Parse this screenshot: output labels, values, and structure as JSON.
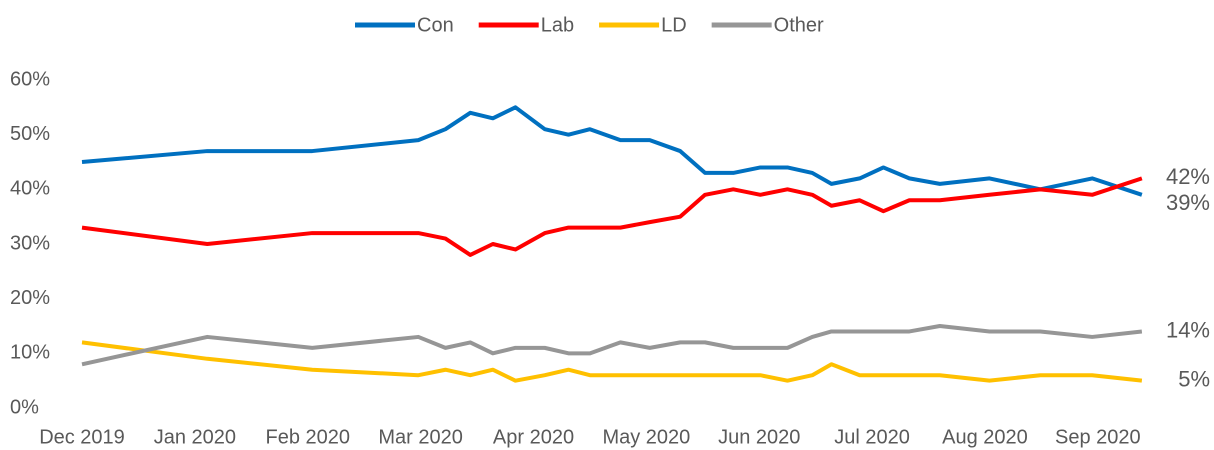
{
  "chart_data": {
    "type": "line",
    "x": [
      0,
      1.11,
      2.04,
      2.98,
      3.22,
      3.44,
      3.64,
      3.84,
      4.1,
      4.31,
      4.5,
      4.77,
      5.03,
      5.3,
      5.52,
      5.77,
      6.01,
      6.25,
      6.47,
      6.64,
      6.89,
      7.1,
      7.33,
      7.6,
      8.04,
      8.49,
      8.95,
      9.39
    ],
    "series": [
      {
        "name": "Con",
        "color": "#0070c0",
        "values": [
          45,
          47,
          47,
          49,
          51,
          54,
          53,
          55,
          51,
          50,
          51,
          49,
          49,
          47,
          43,
          43,
          44,
          44,
          43,
          41,
          42,
          44,
          42,
          41,
          42,
          40,
          42,
          39
        ],
        "value_labels": [
          null,
          null,
          null,
          null,
          null,
          null,
          null,
          null,
          null,
          null,
          null,
          null,
          null,
          null,
          null,
          null,
          null,
          null,
          null,
          null,
          null,
          null,
          null,
          null,
          null,
          null,
          null,
          "39%"
        ]
      },
      {
        "name": "Lab",
        "color": "#ff0000",
        "values": [
          33,
          30,
          32,
          32,
          31,
          28,
          30,
          29,
          32,
          33,
          33,
          33,
          34,
          35,
          39,
          40,
          39,
          40,
          39,
          37,
          38,
          36,
          38,
          38,
          39,
          40,
          39,
          42
        ],
        "value_labels": [
          null,
          null,
          null,
          null,
          null,
          null,
          null,
          null,
          null,
          null,
          null,
          null,
          null,
          null,
          null,
          null,
          null,
          null,
          null,
          null,
          null,
          null,
          null,
          null,
          null,
          null,
          null,
          "42%"
        ]
      },
      {
        "name": "LD",
        "color": "#ffc000",
        "values": [
          12,
          9,
          7,
          6,
          7,
          6,
          7,
          5,
          6,
          7,
          6,
          6,
          6,
          6,
          6,
          6,
          6,
          5,
          6,
          8,
          6,
          6,
          6,
          6,
          5,
          6,
          6,
          5
        ],
        "value_labels": [
          null,
          null,
          null,
          null,
          null,
          null,
          null,
          null,
          null,
          null,
          null,
          null,
          null,
          null,
          null,
          null,
          null,
          null,
          null,
          null,
          null,
          null,
          null,
          null,
          null,
          null,
          null,
          "5%"
        ]
      },
      {
        "name": "Other",
        "color": "#969696",
        "values": [
          8,
          13,
          11,
          13,
          11,
          12,
          10,
          11,
          11,
          10,
          10,
          12,
          11,
          12,
          12,
          11,
          11,
          11,
          13,
          14,
          14,
          14,
          14,
          15,
          14,
          14,
          13,
          14
        ],
        "value_labels": [
          null,
          null,
          null,
          null,
          null,
          null,
          null,
          null,
          null,
          null,
          null,
          null,
          null,
          null,
          null,
          null,
          null,
          null,
          null,
          null,
          null,
          null,
          null,
          null,
          null,
          null,
          null,
          "14%"
        ]
      }
    ],
    "xlim": [
      0,
      9.4
    ],
    "xticks": [
      {
        "value": 0,
        "label": "Dec 2019"
      },
      {
        "value": 1,
        "label": "Jan 2020"
      },
      {
        "value": 2,
        "label": "Feb 2020"
      },
      {
        "value": 3,
        "label": "Mar 2020"
      },
      {
        "value": 4,
        "label": "Apr 2020"
      },
      {
        "value": 5,
        "label": "May 2020"
      },
      {
        "value": 6,
        "label": "Jun 2020"
      },
      {
        "value": 7,
        "label": "Jul 2020"
      },
      {
        "value": 8,
        "label": "Aug 2020"
      },
      {
        "value": 9,
        "label": "Sep 2020"
      }
    ],
    "ylim": [
      0,
      60
    ],
    "yticks": [
      {
        "value": 0,
        "label": "0%"
      },
      {
        "value": 10,
        "label": "10%"
      },
      {
        "value": 20,
        "label": "20%"
      },
      {
        "value": 30,
        "label": "30%"
      },
      {
        "value": 40,
        "label": "40%"
      },
      {
        "value": 50,
        "label": "50%"
      },
      {
        "value": 60,
        "label": "60%"
      }
    ],
    "grid": false,
    "legend": "top"
  }
}
